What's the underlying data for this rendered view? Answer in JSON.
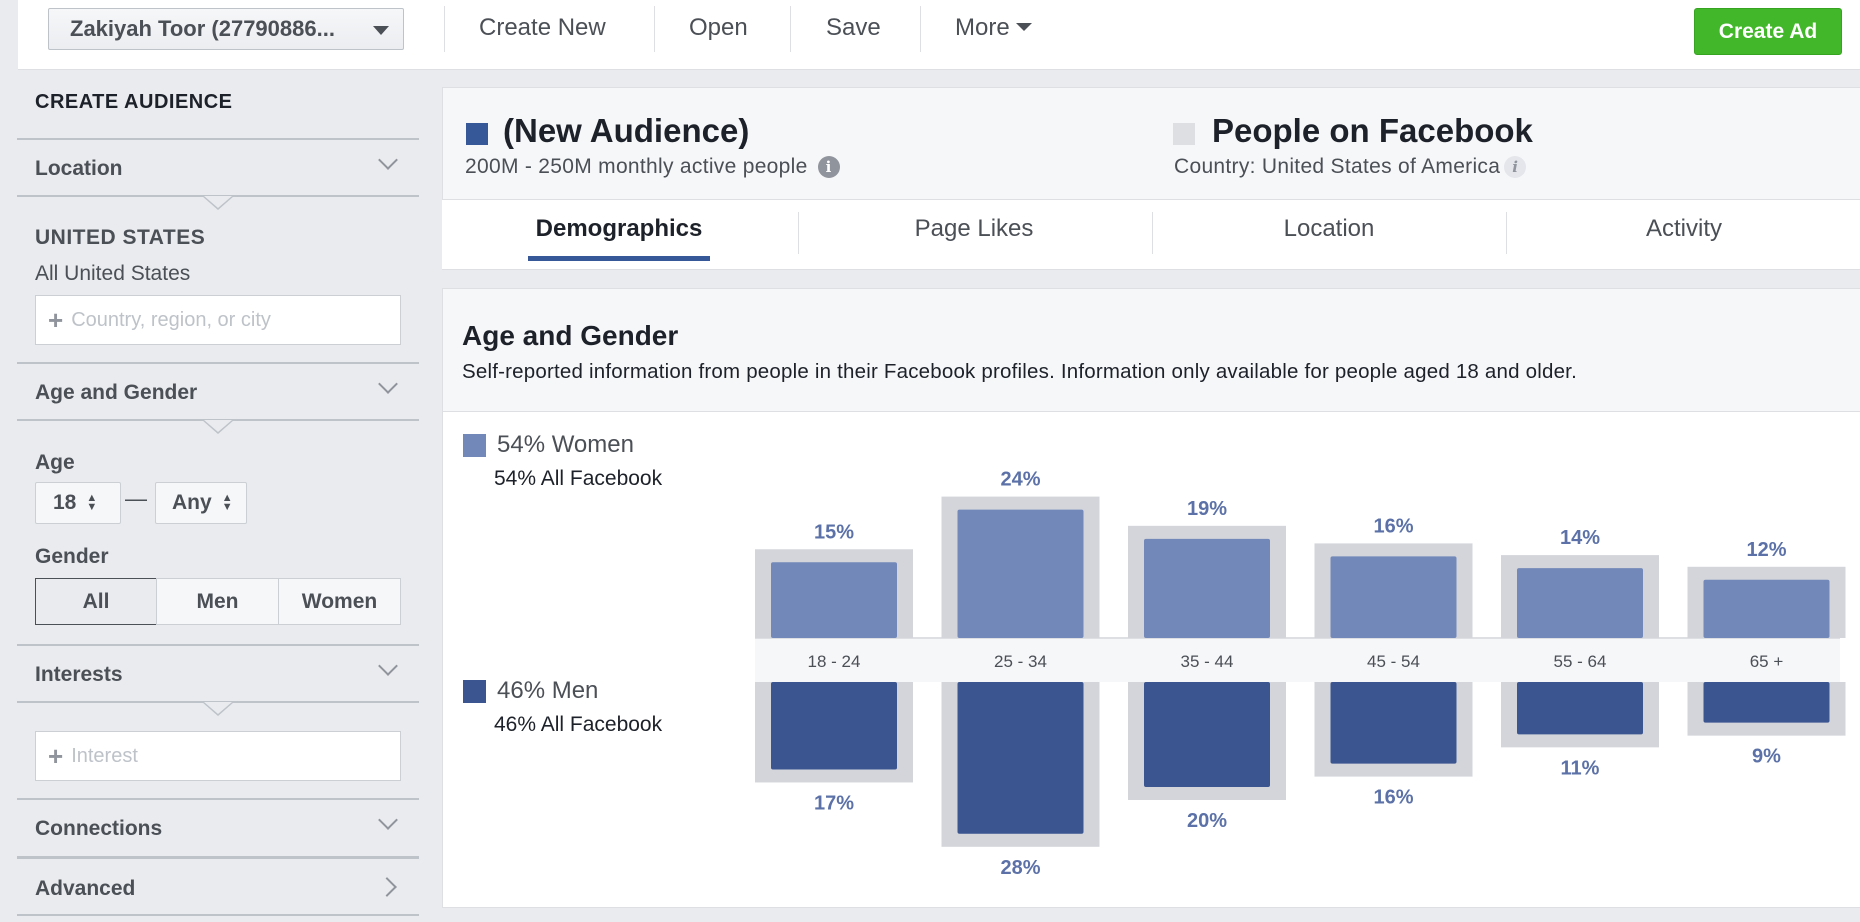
{
  "toolbar": {
    "account_label": "Zakiyah Toor (27790886...",
    "create_new": "Create New",
    "open": "Open",
    "save": "Save",
    "more": "More",
    "create_ad": "Create Ad"
  },
  "sidebar": {
    "heading": "CREATE AUDIENCE",
    "location": {
      "title": "Location",
      "country": "UNITED STATES",
      "scope": "All United States",
      "placeholder": "Country, region, or city"
    },
    "age_gender": {
      "title": "Age and Gender",
      "age_label": "Age",
      "age_min": "18",
      "age_max": "Any",
      "gender_label": "Gender",
      "gender_options": [
        "All",
        "Men",
        "Women"
      ],
      "gender_selected": "All"
    },
    "interests": {
      "title": "Interests",
      "placeholder": "Interest"
    },
    "connections": {
      "title": "Connections"
    },
    "advanced": {
      "title": "Advanced"
    }
  },
  "audience": {
    "name": "(New Audience)",
    "size": "200M - 250M monthly active people",
    "compare_name": "People on Facebook",
    "compare_scope": "Country: United States of America",
    "colors": {
      "audience": "#365899",
      "compare": "#dddfe2"
    }
  },
  "tabs": [
    "Demographics",
    "Page Likes",
    "Location",
    "Activity"
  ],
  "active_tab": "Demographics",
  "section": {
    "title": "Age and Gender",
    "description": "Self-reported information from people in their Facebook profiles. Information only available for people aged 18 and older."
  },
  "legend": {
    "women": {
      "main": "54% Women",
      "sub": "54% All Facebook",
      "color": "#7288b9"
    },
    "men": {
      "main": "46% Men",
      "sub": "46% All Facebook",
      "color": "#3b5591"
    }
  },
  "chart_data": {
    "type": "bar",
    "categories": [
      "18 - 24",
      "25 - 34",
      "35 - 44",
      "45 - 54",
      "55 - 64",
      "65 +"
    ],
    "series": [
      {
        "name": "Women",
        "values": [
          15,
          24,
          19,
          16,
          14,
          12
        ],
        "labels": [
          "15%",
          "24%",
          "19%",
          "16%",
          "14%",
          "12%"
        ],
        "color": "#7288b9"
      },
      {
        "name": "Men",
        "values": [
          17,
          28,
          20,
          16,
          11,
          9
        ],
        "labels": [
          "17%",
          "28%",
          "20%",
          "16%",
          "11%",
          "9%"
        ],
        "color": "#3b5591"
      }
    ],
    "baseline_color": "#d3d5da",
    "label_color": "#5b71a7"
  }
}
